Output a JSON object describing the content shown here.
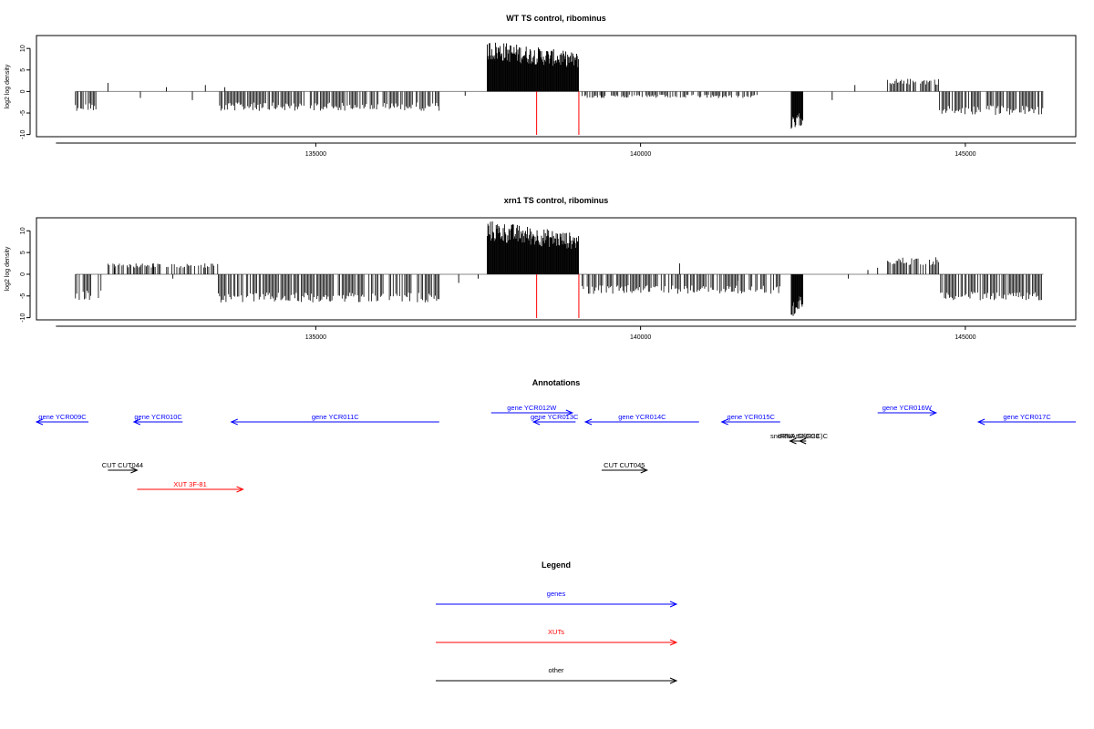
{
  "chart_data": [
    {
      "type": "bar",
      "title": "WT TS control, ribominus",
      "xlabel": "",
      "ylabel": "log2 log density",
      "xlim": [
        130700,
        146700
      ],
      "ylim": [
        -10.5,
        13
      ],
      "xticks": [
        135000,
        140000,
        145000
      ],
      "yticks": [
        10,
        5,
        0,
        -5,
        -10
      ],
      "grid": false,
      "highlight_x": [
        138400,
        139050
      ],
      "series": [
        {
          "values_note": "",
          "segments": [
            {
              "x": [
                131300,
                131650
              ],
              "y": [
                -4.5,
                -1.5
              ]
            },
            {
              "x": [
                133500,
                136900
              ],
              "y": [
                -4.5,
                -1.5
              ]
            },
            {
              "x": [
                137640,
                139050
              ],
              "y": [
                12,
                7
              ]
            },
            {
              "x": [
                139100,
                141800
              ],
              "y": [
                -1.5,
                -0.3
              ]
            },
            {
              "x": [
                142320,
                142500
              ],
              "y": [
                -10,
                -4
              ]
            },
            {
              "x": [
                143800,
                144600
              ],
              "y": [
                3,
                0.8
              ]
            },
            {
              "x": [
                144600,
                146200
              ],
              "y": [
                -5.5,
                -2
              ]
            }
          ]
        }
      ]
    },
    {
      "type": "bar",
      "title": "xrn1 TS control, ribominus",
      "xlabel": "",
      "ylabel": "log2 log density",
      "xlim": [
        130700,
        146700
      ],
      "ylim": [
        -10.5,
        13
      ],
      "xticks": [
        135000,
        140000,
        145000
      ],
      "yticks": [
        10,
        5,
        0,
        -5,
        -10
      ],
      "grid": false,
      "highlight_x": [
        138400,
        139050
      ],
      "series": [
        {
          "segments": [
            {
              "x": [
                131300,
                131700
              ],
              "y": [
                -6,
                -2.5
              ]
            },
            {
              "x": [
                131800,
                133500
              ],
              "y": [
                2.5,
                1
              ]
            },
            {
              "x": [
                133500,
                136900
              ],
              "y": [
                -6.5,
                -3
              ]
            },
            {
              "x": [
                137640,
                139050
              ],
              "y": [
                12.5,
                8
              ]
            },
            {
              "x": [
                139100,
                142200
              ],
              "y": [
                -4.5,
                -1.5
              ]
            },
            {
              "x": [
                142320,
                142500
              ],
              "y": [
                -10,
                -5
              ]
            },
            {
              "x": [
                143800,
                144600
              ],
              "y": [
                4,
                1
              ]
            },
            {
              "x": [
                144600,
                146200
              ],
              "y": [
                -6,
                -3
              ]
            }
          ]
        }
      ]
    }
  ],
  "annotations": {
    "title": "Annotations",
    "features": [
      {
        "label": "gene YCR009C",
        "class": "gene",
        "start": 130700,
        "end": 131500,
        "strand": "-",
        "row": 0
      },
      {
        "label": "gene YCR010C",
        "class": "gene",
        "start": 132200,
        "end": 132950,
        "strand": "-",
        "row": 0
      },
      {
        "label": "gene YCR011C",
        "class": "gene",
        "start": 133700,
        "end": 136900,
        "strand": "-",
        "row": 0
      },
      {
        "label": "gene YCR012W",
        "class": "gene",
        "start": 137700,
        "end": 138950,
        "strand": "+",
        "row": -1
      },
      {
        "label": "gene YCR013C",
        "class": "gene",
        "start": 138350,
        "end": 139000,
        "strand": "-",
        "row": 0
      },
      {
        "label": "gene YCR014C",
        "class": "gene",
        "start": 139150,
        "end": 140900,
        "strand": "-",
        "row": 0
      },
      {
        "label": "gene YCR015C",
        "class": "gene",
        "start": 141250,
        "end": 142150,
        "strand": "-",
        "row": 0
      },
      {
        "label": "gene YCR016W",
        "class": "gene",
        "start": 143650,
        "end": 144550,
        "strand": "+",
        "row": -1
      },
      {
        "label": "gene YCR017C",
        "class": "gene",
        "start": 145200,
        "end": 146700,
        "strand": "-",
        "row": 0
      },
      {
        "label": "snoRNA SNR33",
        "class": "other",
        "start": 142300,
        "end": 142450,
        "strand": "-",
        "row": 1
      },
      {
        "label": "tRNA tG(GCC)C",
        "class": "other",
        "start": 142450,
        "end": 142550,
        "strand": "-",
        "row": 1
      },
      {
        "label": "CUT CUT044",
        "class": "other",
        "start": 131800,
        "end": 132250,
        "strand": "+",
        "row": 2
      },
      {
        "label": "CUT CUT045",
        "class": "other",
        "start": 139400,
        "end": 140100,
        "strand": "+",
        "row": 2
      },
      {
        "label": "XUT 3F-81",
        "class": "xut",
        "start": 132250,
        "end": 133880,
        "strand": "+",
        "row": 3
      }
    ]
  },
  "legend": {
    "title": "Legend",
    "items": [
      {
        "label": "genes",
        "class": "gene"
      },
      {
        "label": "XUTs",
        "class": "xut"
      },
      {
        "label": "other",
        "class": "other"
      }
    ]
  },
  "colors": {
    "gene": "#0000ff",
    "xut": "#ff0000",
    "other": "#000000",
    "highlight": "#ff0000",
    "bars": "#000000",
    "baseline": "#888888"
  }
}
